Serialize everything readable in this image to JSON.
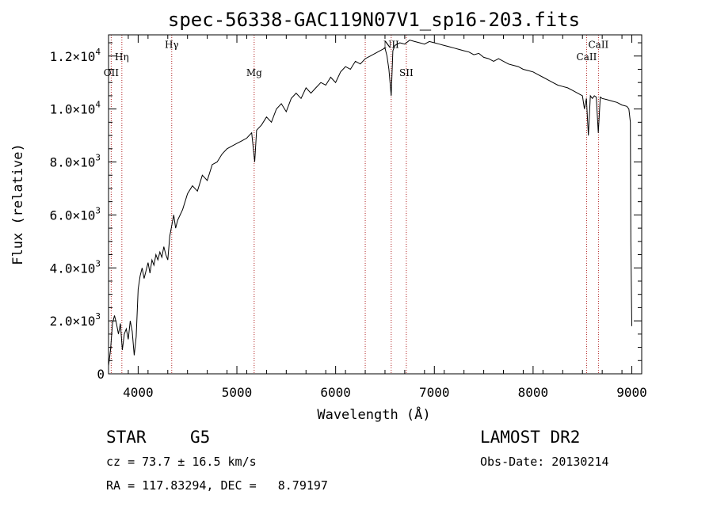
{
  "chart_data": {
    "type": "line",
    "title": "spec-56338-GAC119N07V1_sp16-203.fits",
    "xlabel": "Wavelength (Å)",
    "ylabel": "Flux (relative)",
    "xlim": [
      3700,
      9100
    ],
    "ylim": [
      0,
      12800
    ],
    "grid": false,
    "x_ticks": [
      {
        "value": 4000,
        "label": "4000"
      },
      {
        "value": 5000,
        "label": "5000"
      },
      {
        "value": 6000,
        "label": "6000"
      },
      {
        "value": 7000,
        "label": "7000"
      },
      {
        "value": 8000,
        "label": "8000"
      },
      {
        "value": 9000,
        "label": "9000"
      }
    ],
    "y_ticks": [
      {
        "value": 0,
        "mant": "0",
        "exp": ""
      },
      {
        "value": 2000,
        "mant": "2.0×10",
        "exp": "3"
      },
      {
        "value": 4000,
        "mant": "4.0×10",
        "exp": "3"
      },
      {
        "value": 6000,
        "mant": "6.0×10",
        "exp": "3"
      },
      {
        "value": 8000,
        "mant": "8.0×10",
        "exp": "3"
      },
      {
        "value": 10000,
        "mant": "1.0×10",
        "exp": "4"
      },
      {
        "value": 12000,
        "mant": "1.2×10",
        "exp": "4"
      }
    ],
    "lines": [
      {
        "wavelength": 3727,
        "label": "OII",
        "label_flux": 11250
      },
      {
        "wavelength": 3835,
        "label": "Hη",
        "label_flux": 11850
      },
      {
        "wavelength": 4340,
        "label": "Hγ",
        "label_flux": 12300
      },
      {
        "wavelength": 5175,
        "label": "Mg",
        "label_flux": 11250
      },
      {
        "wavelength": 6300,
        "label": "",
        "label_flux": null
      },
      {
        "wavelength": 6563,
        "label": "NII",
        "label_flux": 12300
      },
      {
        "wavelength": 6716,
        "label": "SII",
        "label_flux": 11250
      },
      {
        "wavelength": 8542,
        "label": "CaII",
        "label_flux": 11850
      },
      {
        "wavelength": 8662,
        "label": "CaII",
        "label_flux": 12300
      }
    ],
    "series": [
      {
        "x": [
          3700,
          3720,
          3740,
          3760,
          3780,
          3800,
          3820,
          3840,
          3860,
          3880,
          3900,
          3920,
          3940,
          3960,
          3980,
          4000,
          4020,
          4040,
          4060,
          4080,
          4100,
          4120,
          4140,
          4160,
          4180,
          4200,
          4220,
          4240,
          4260,
          4280,
          4300,
          4320,
          4340,
          4360,
          4380,
          4400,
          4450,
          4500,
          4550,
          4600,
          4650,
          4700,
          4750,
          4800,
          4850,
          4900,
          4950,
          5000,
          5050,
          5100,
          5150,
          5180,
          5200,
          5250,
          5300,
          5350,
          5400,
          5450,
          5500,
          5550,
          5600,
          5650,
          5700,
          5750,
          5800,
          5850,
          5900,
          5950,
          6000,
          6050,
          6100,
          6150,
          6200,
          6250,
          6300,
          6350,
          6400,
          6450,
          6500,
          6520,
          6540,
          6563,
          6580,
          6600,
          6650,
          6700,
          6750,
          6800,
          6850,
          6900,
          6950,
          7000,
          7050,
          7100,
          7150,
          7200,
          7250,
          7300,
          7350,
          7400,
          7450,
          7500,
          7550,
          7600,
          7650,
          7700,
          7750,
          7800,
          7850,
          7900,
          7950,
          8000,
          8050,
          8100,
          8150,
          8200,
          8250,
          8300,
          8350,
          8400,
          8450,
          8500,
          8520,
          8540,
          8560,
          8580,
          8600,
          8620,
          8640,
          8660,
          8680,
          8700,
          8750,
          8800,
          8850,
          8900,
          8950,
          8970,
          8985,
          8990,
          9000
        ],
        "y": [
          300,
          900,
          1900,
          2200,
          1900,
          1500,
          1900,
          900,
          1500,
          1700,
          1300,
          2000,
          1600,
          700,
          1400,
          3200,
          3700,
          4000,
          3600,
          3900,
          4200,
          3800,
          4300,
          4100,
          4500,
          4300,
          4600,
          4400,
          4800,
          4500,
          4300,
          5200,
          5600,
          6000,
          5500,
          5800,
          6200,
          6800,
          7100,
          6900,
          7500,
          7300,
          7900,
          8000,
          8300,
          8500,
          8600,
          8700,
          8800,
          8900,
          9100,
          8000,
          9200,
          9400,
          9700,
          9500,
          10000,
          10200,
          9900,
          10400,
          10600,
          10400,
          10800,
          10600,
          10800,
          11000,
          10900,
          11200,
          11000,
          11400,
          11600,
          11500,
          11800,
          11700,
          11900,
          12000,
          12100,
          12200,
          12300,
          12000,
          11500,
          10500,
          12200,
          12400,
          12500,
          12450,
          12600,
          12550,
          12500,
          12450,
          12550,
          12500,
          12450,
          12400,
          12350,
          12300,
          12250,
          12200,
          12150,
          12050,
          12100,
          11950,
          11900,
          11800,
          11900,
          11800,
          11700,
          11650,
          11600,
          11500,
          11450,
          11400,
          11300,
          11200,
          11100,
          11000,
          10900,
          10850,
          10800,
          10700,
          10600,
          10500,
          10000,
          10400,
          9000,
          10500,
          10400,
          10500,
          10450,
          9100,
          10450,
          10400,
          10350,
          10300,
          10250,
          10150,
          10100,
          10000,
          9500,
          5000,
          1800
        ]
      }
    ]
  },
  "footer": {
    "object_class": "STAR",
    "subclass": "G5",
    "cz": "cz = 73.7 ± 16.5 km/s",
    "radec": "RA = 117.83294, DEC =   8.79197",
    "survey": "LAMOST DR2",
    "obs_date": "Obs-Date: 20130214"
  }
}
